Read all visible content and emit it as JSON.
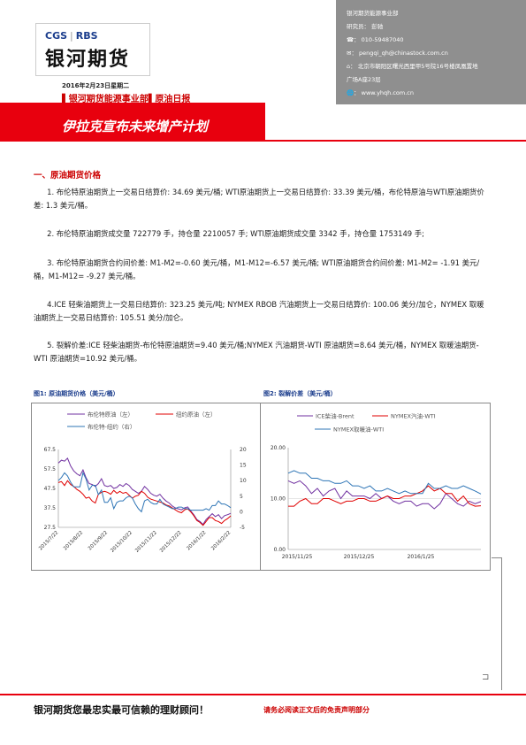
{
  "header": {
    "logo_top_left": "CGS",
    "logo_top_right": "RBS",
    "logo_main": "银河期货",
    "date_line": "2016年2月23日星期二",
    "dept_line": "▌银河期货能源事业部▌原油日报",
    "title": "伊拉克宣布未来增产计划"
  },
  "side_panel": {
    "lines": [
      "银河期货能源事业部",
      "研究员：  彭驰",
      "☎：  010-59487040",
      "✉：  pengqi_qh@chinastock.com.cn",
      "⌂：  北京市朝阳区曙光西里甲5号院16号楼凤凰置地",
      "广场A座23层",
      "🌐：  www.yhqh.com.cn"
    ]
  },
  "section": {
    "heading": "一、原油期货价格"
  },
  "paragraphs": [
    "1. 布伦特原油期货上一交易日结算价: 34.69 美元/桶; WTI原油期货上一交易日结算价: 33.39 美元/桶，布伦特原油与WTI原油期货价差: 1.3 美元/桶。",
    "2. 布伦特原油期货成交量 722779 手，持仓量 2210057 手; WTI原油期货成交量 3342 手，持仓量 1753149 手;",
    "3. 布伦特原油期货合约间价差: M1-M2=-0.60 美元/桶，M1-M12=-6.57 美元/桶; WTI原油期货合约间价差: M1-M2= -1.91 美元/桶，M1-M12= -9.27 美元/桶。",
    "4.ICE 轻柴油期货上一交易日结算价: 323.25 美元/吨; NYMEX RBOB 汽油期货上一交易日结算价: 100.06 美分/加仑，NYMEX 取暖油期货上一交易日结算价: 105.51 美分/加仑。",
    "5. 裂解价差:ICE 轻柴油期货-布伦特原油期货=9.40 美元/桶;NYMEX 汽油期货-WTI 原油期货=8.64 美元/桶，NYMEX 取暖油期货-WTI 原油期货=10.92 美元/桶。"
  ],
  "fig1_label": "图1: 原油期货价格（美元/桶）",
  "fig2_label": "图2: 裂解价差（美元/桶）",
  "chart_data": [
    {
      "type": "line",
      "series": [
        {
          "name": "布伦特原油（左）",
          "color": "#7030a0",
          "axis": "left",
          "values": [
            60.5,
            62.0,
            61.5,
            63.0,
            59.0,
            56.5,
            55.0,
            54.0,
            57.0,
            53.0,
            50.0,
            49.5,
            48.5,
            50.0,
            52.5,
            49.0,
            48.5,
            49.0,
            47.5,
            48.0,
            49.5,
            48.5,
            50.0,
            49.0,
            47.0,
            46.0,
            45.0,
            46.0,
            48.5,
            47.0,
            45.0,
            44.0,
            43.5,
            44.5,
            42.5,
            41.0,
            40.0,
            38.5,
            37.5,
            37.0,
            36.5,
            37.5,
            38.0,
            36.0,
            34.0,
            31.5,
            30.5,
            29.0,
            31.5,
            33.0,
            34.5,
            33.0,
            34.0,
            32.0,
            33.5,
            34.0,
            34.7
          ]
        },
        {
          "name": "纽约原油（左）",
          "color": "#e00000",
          "axis": "left",
          "values": [
            50.5,
            51.0,
            49.0,
            51.5,
            49.5,
            48.5,
            47.0,
            46.0,
            44.5,
            42.5,
            43.0,
            41.0,
            40.0,
            44.5,
            45.5,
            46.0,
            45.5,
            44.5,
            46.5,
            45.0,
            46.0,
            45.0,
            45.5,
            44.0,
            42.5,
            43.5,
            44.0,
            46.0,
            45.0,
            43.0,
            42.0,
            41.5,
            41.0,
            40.5,
            40.0,
            39.0,
            38.5,
            37.5,
            36.5,
            35.5,
            35.0,
            36.5,
            37.0,
            35.5,
            33.5,
            31.0,
            30.0,
            28.5,
            30.5,
            32.5,
            32.5,
            31.0,
            30.5,
            29.5,
            31.0,
            32.0,
            33.4
          ]
        },
        {
          "name": "布伦特-纽约（右）",
          "color": "#2e75b6",
          "axis": "right",
          "values": [
            10.0,
            11.0,
            12.5,
            11.5,
            9.5,
            8.0,
            8.0,
            8.0,
            12.5,
            10.5,
            7.0,
            8.5,
            8.5,
            5.5,
            7.0,
            3.0,
            3.0,
            4.5,
            1.0,
            3.0,
            3.5,
            3.5,
            4.5,
            5.0,
            4.5,
            2.5,
            1.0,
            0.0,
            3.5,
            4.0,
            3.0,
            2.5,
            2.5,
            4.0,
            2.5,
            2.0,
            1.5,
            1.0,
            1.0,
            1.5,
            1.5,
            1.0,
            1.0,
            0.5,
            0.5,
            0.5,
            0.5,
            0.5,
            1.0,
            0.5,
            2.0,
            2.0,
            3.5,
            2.5,
            2.5,
            2.0,
            1.3
          ]
        }
      ],
      "x_ticks": [
        "2015/7/22",
        "2015/8/22",
        "2015/9/22",
        "2015/10/22",
        "2015/11/22",
        "2015/12/22",
        "2016/1/22",
        "2016/2/22"
      ],
      "y_left_ticks": [
        67.5,
        57.5,
        47.5,
        37.5,
        27.5
      ],
      "y_right_ticks": [
        20,
        15,
        10,
        5,
        0,
        -5
      ],
      "y_left_range": [
        27.5,
        67.5
      ],
      "y_right_range": [
        -5,
        20
      ],
      "legend": "top"
    },
    {
      "type": "line",
      "series": [
        {
          "name": "ICE柴油-Brent",
          "color": "#7030a0",
          "values": [
            13.5,
            13.0,
            13.5,
            12.5,
            11.0,
            12.0,
            10.5,
            11.5,
            12.0,
            10.0,
            11.5,
            10.5,
            10.5,
            10.5,
            10.0,
            11.0,
            10.0,
            10.5,
            9.5,
            9.0,
            9.5,
            9.5,
            8.5,
            9.0,
            9.0,
            8.0,
            9.0,
            11.0,
            10.0,
            9.0,
            8.5,
            9.5,
            9.0,
            9.4
          ]
        },
        {
          "name": "NYMEX汽油-WTI",
          "color": "#e00000",
          "values": [
            8.5,
            8.5,
            9.5,
            10.0,
            9.0,
            9.0,
            10.0,
            10.0,
            9.5,
            9.0,
            9.5,
            9.5,
            10.0,
            10.0,
            9.5,
            9.5,
            10.0,
            10.5,
            10.0,
            10.0,
            10.5,
            10.5,
            11.0,
            11.5,
            12.5,
            11.5,
            12.0,
            11.0,
            11.0,
            9.5,
            10.5,
            9.0,
            8.5,
            8.6
          ]
        },
        {
          "name": "NYMEX取暖油-WTI",
          "color": "#2e75b6",
          "values": [
            15.0,
            15.5,
            15.0,
            15.0,
            14.0,
            14.0,
            13.5,
            13.5,
            13.0,
            13.0,
            13.5,
            12.5,
            12.5,
            12.0,
            12.5,
            11.5,
            11.5,
            12.0,
            11.5,
            11.0,
            11.5,
            11.0,
            11.0,
            11.0,
            13.0,
            12.0,
            12.0,
            12.5,
            12.0,
            12.0,
            12.5,
            12.0,
            11.5,
            10.9
          ]
        }
      ],
      "x_ticks": [
        "2015/11/25",
        "2015/12/25",
        "2016/1/25"
      ],
      "y_ticks": [
        "20.00",
        "10.00",
        "0.00"
      ],
      "y_range": [
        0,
        20
      ],
      "legend": "top"
    }
  ],
  "footer": {
    "left": "银河期货您最忠实最可信赖的理财顾问！",
    "right": "请务必阅读正文后的免责声明部分"
  }
}
